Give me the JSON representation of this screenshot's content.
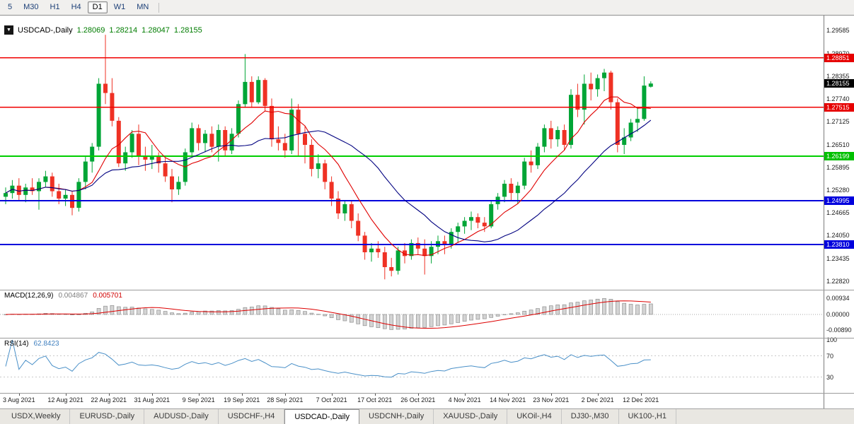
{
  "toolbar": {
    "periods": [
      {
        "label": "5",
        "active": false
      },
      {
        "label": "M30",
        "active": false
      },
      {
        "label": "H1",
        "active": false
      },
      {
        "label": "H4",
        "active": false
      },
      {
        "label": "D1",
        "active": true
      },
      {
        "label": "W1",
        "active": false
      },
      {
        "label": "MN",
        "active": false
      }
    ]
  },
  "chart_header": {
    "menu_icon": "▼",
    "symbol": "USDCAD-,Daily",
    "open": "1.28069",
    "high": "1.28214",
    "low": "1.28047",
    "close": "1.28155"
  },
  "macd_panel": {
    "title": "MACD(12,26,9)",
    "value_main": "0.004867",
    "value_signal": "0.005701",
    "axis": [
      {
        "text": "0.00934",
        "value": 0.00934
      },
      {
        "text": "0.00000",
        "value": 0
      },
      {
        "text": "-0.00890",
        "value": -0.0089
      }
    ]
  },
  "rsi_panel": {
    "title": "RSI(14)",
    "value": "62.8423",
    "axis": [
      {
        "text": "100",
        "value": 100
      },
      {
        "text": "70",
        "value": 70
      },
      {
        "text": "30",
        "value": 30
      }
    ]
  },
  "price_axis": {
    "labels": [
      "1.29585",
      "1.28970",
      "1.28355",
      "1.27740",
      "1.27125",
      "1.26510",
      "1.25895",
      "1.25280",
      "1.24665",
      "1.24050",
      "1.23435",
      "1.22820"
    ],
    "boxes": [
      {
        "text": "1.28851",
        "price": 1.28851,
        "bg": "#e60000"
      },
      {
        "text": "1.28155",
        "price": 1.28155,
        "bg": "#000000"
      },
      {
        "text": "1.27515",
        "price": 1.27515,
        "bg": "#e60000"
      },
      {
        "text": "1.26199",
        "price": 1.26199,
        "bg": "#00c000"
      },
      {
        "text": "1.24995",
        "price": 1.24995,
        "bg": "#0000dd"
      },
      {
        "text": "1.23810",
        "price": 1.2381,
        "bg": "#0000dd"
      }
    ]
  },
  "date_axis": [
    {
      "text": "3 Aug 2021",
      "idx": 2
    },
    {
      "text": "12 Aug 2021",
      "idx": 9
    },
    {
      "text": "22 Aug 2021",
      "idx": 15.5
    },
    {
      "text": "31 Aug 2021",
      "idx": 22
    },
    {
      "text": "9 Sep 2021",
      "idx": 29
    },
    {
      "text": "19 Sep 2021",
      "idx": 35.5
    },
    {
      "text": "28 Sep 2021",
      "idx": 42
    },
    {
      "text": "7 Oct 2021",
      "idx": 49
    },
    {
      "text": "17 Oct 2021",
      "idx": 55.5
    },
    {
      "text": "26 Oct 2021",
      "idx": 62
    },
    {
      "text": "4 Nov 2021",
      "idx": 69
    },
    {
      "text": "14 Nov 2021",
      "idx": 75.5
    },
    {
      "text": "23 Nov 2021",
      "idx": 82
    },
    {
      "text": "2 Dec 2021",
      "idx": 89
    },
    {
      "text": "12 Dec 2021",
      "idx": 95.5
    }
  ],
  "tabs": [
    {
      "label": "USDX,Weekly",
      "active": false
    },
    {
      "label": "EURUSD-,Daily",
      "active": false
    },
    {
      "label": "AUDUSD-,Daily",
      "active": false
    },
    {
      "label": "USDCHF-,H4",
      "active": false
    },
    {
      "label": "USDCAD-,Daily",
      "active": true
    },
    {
      "label": "USDCNH-,Daily",
      "active": false
    },
    {
      "label": "XAUUSD-,Daily",
      "active": false
    },
    {
      "label": "UKOil-,H4",
      "active": false
    },
    {
      "label": "DJ30-,M30",
      "active": false
    },
    {
      "label": "UK100-,H1",
      "active": false
    }
  ],
  "colors": {
    "bull": "#00a536",
    "bear": "#ef3124",
    "macd_fill": "#d4d4d4",
    "macd_stroke": "#8f8f8f",
    "macd_signal": "#dd0000",
    "rsi_line": "#4a90c8"
  },
  "chart_data": {
    "type": "candlestick",
    "title": "USDCAD-,Daily",
    "symbol": "USDCAD",
    "timeframe": "Daily",
    "last_bar": {
      "open": 1.28069,
      "high": 1.28214,
      "low": 1.28047,
      "close": 1.28155
    },
    "ylim": [
      1.2259,
      1.2999
    ],
    "x0": 8,
    "step": 9.4,
    "levels": [
      {
        "price": 1.28851,
        "color": "#f00000",
        "width": 1.4
      },
      {
        "price": 1.27515,
        "color": "#f00000",
        "width": 1.4
      },
      {
        "price": 1.26199,
        "color": "#00ce00",
        "width": 2
      },
      {
        "price": 1.24995,
        "color": "#0000dc",
        "width": 2
      },
      {
        "price": 1.2381,
        "color": "#0000dc",
        "width": 2
      }
    ],
    "current_price": 1.28155,
    "ma": [
      {
        "period": 8,
        "color": "#e00000",
        "width": 1.1
      },
      {
        "period": 21,
        "color": "#000080",
        "width": 1.1
      }
    ],
    "macd": {
      "fast": 12,
      "slow": 26,
      "signal_period": 9,
      "ylim": [
        -0.0134,
        0.0142
      ]
    },
    "rsi": {
      "period": 14,
      "ylim": [
        0,
        104
      ],
      "levels": [
        70,
        30
      ]
    },
    "candles": [
      [
        1.251,
        1.2535,
        1.249,
        1.252
      ],
      [
        1.252,
        1.2555,
        1.2505,
        1.254
      ],
      [
        1.254,
        1.256,
        1.25,
        1.2515
      ],
      [
        1.2515,
        1.2545,
        1.2495,
        1.2535
      ],
      [
        1.2535,
        1.256,
        1.2515,
        1.2525
      ],
      [
        1.2525,
        1.256,
        1.2475,
        1.255
      ],
      [
        1.255,
        1.258,
        1.2535,
        1.2565
      ],
      [
        1.2565,
        1.2575,
        1.251,
        1.2525
      ],
      [
        1.2525,
        1.2545,
        1.249,
        1.2505
      ],
      [
        1.2505,
        1.253,
        1.2485,
        1.2515
      ],
      [
        1.2515,
        1.2525,
        1.246,
        1.248
      ],
      [
        1.248,
        1.256,
        1.247,
        1.255
      ],
      [
        1.255,
        1.262,
        1.253,
        1.2605
      ],
      [
        1.2605,
        1.2655,
        1.2575,
        1.2645
      ],
      [
        1.2645,
        1.283,
        1.2635,
        1.2815
      ],
      [
        1.2815,
        1.2947,
        1.276,
        1.279
      ],
      [
        1.279,
        1.283,
        1.27,
        1.2715
      ],
      [
        1.2715,
        1.2725,
        1.259,
        1.26
      ],
      [
        1.26,
        1.2645,
        1.258,
        1.263
      ],
      [
        1.263,
        1.269,
        1.2615,
        1.268
      ],
      [
        1.268,
        1.2705,
        1.2595,
        1.262
      ],
      [
        1.262,
        1.2645,
        1.258,
        1.261
      ],
      [
        1.261,
        1.265,
        1.2585,
        1.262
      ],
      [
        1.262,
        1.263,
        1.2575,
        1.26
      ],
      [
        1.26,
        1.2615,
        1.255,
        1.2565
      ],
      [
        1.2565,
        1.2585,
        1.2495,
        1.253
      ],
      [
        1.253,
        1.2565,
        1.2515,
        1.255
      ],
      [
        1.255,
        1.264,
        1.254,
        1.263
      ],
      [
        1.263,
        1.271,
        1.262,
        1.2695
      ],
      [
        1.2695,
        1.2705,
        1.2635,
        1.2655
      ],
      [
        1.2655,
        1.269,
        1.263,
        1.268
      ],
      [
        1.268,
        1.27,
        1.263,
        1.2645
      ],
      [
        1.2645,
        1.2705,
        1.2605,
        1.269
      ],
      [
        1.269,
        1.27,
        1.262,
        1.2635
      ],
      [
        1.2635,
        1.2695,
        1.2625,
        1.268
      ],
      [
        1.268,
        1.277,
        1.267,
        1.276
      ],
      [
        1.276,
        1.2895,
        1.275,
        1.282
      ],
      [
        1.282,
        1.2835,
        1.275,
        1.2765
      ],
      [
        1.2765,
        1.2835,
        1.276,
        1.2825
      ],
      [
        1.2825,
        1.283,
        1.274,
        1.2755
      ],
      [
        1.2755,
        1.2775,
        1.2645,
        1.2665
      ],
      [
        1.2665,
        1.27,
        1.2635,
        1.2655
      ],
      [
        1.2655,
        1.268,
        1.2615,
        1.2635
      ],
      [
        1.2635,
        1.2775,
        1.2625,
        1.2745
      ],
      [
        1.2745,
        1.276,
        1.262,
        1.268
      ],
      [
        1.268,
        1.27,
        1.26,
        1.265
      ],
      [
        1.265,
        1.2665,
        1.2565,
        1.2585
      ],
      [
        1.2585,
        1.2625,
        1.256,
        1.26
      ],
      [
        1.26,
        1.261,
        1.253,
        1.255
      ],
      [
        1.255,
        1.2565,
        1.2485,
        1.2505
      ],
      [
        1.2505,
        1.2525,
        1.245,
        1.2465
      ],
      [
        1.2465,
        1.25,
        1.2445,
        1.249
      ],
      [
        1.249,
        1.25,
        1.2425,
        1.2445
      ],
      [
        1.2445,
        1.2465,
        1.239,
        1.2405
      ],
      [
        1.2405,
        1.2415,
        1.234,
        1.236
      ],
      [
        1.236,
        1.2385,
        1.2335,
        1.237
      ],
      [
        1.237,
        1.239,
        1.2345,
        1.236
      ],
      [
        1.236,
        1.2375,
        1.2287,
        1.232
      ],
      [
        1.232,
        1.2345,
        1.2295,
        1.231
      ],
      [
        1.231,
        1.2375,
        1.23,
        1.2365
      ],
      [
        1.2365,
        1.2385,
        1.233,
        1.235
      ],
      [
        1.235,
        1.2395,
        1.234,
        1.2385
      ],
      [
        1.2385,
        1.24,
        1.2355,
        1.237
      ],
      [
        1.237,
        1.2395,
        1.23,
        1.235
      ],
      [
        1.235,
        1.239,
        1.233,
        1.2375
      ],
      [
        1.2375,
        1.2405,
        1.2355,
        1.239
      ],
      [
        1.239,
        1.2405,
        1.2355,
        1.238
      ],
      [
        1.238,
        1.2425,
        1.237,
        1.2415
      ],
      [
        1.2415,
        1.244,
        1.2385,
        1.243
      ],
      [
        1.243,
        1.2455,
        1.241,
        1.2445
      ],
      [
        1.2445,
        1.247,
        1.242,
        1.2455
      ],
      [
        1.2455,
        1.2465,
        1.2425,
        1.244
      ],
      [
        1.244,
        1.2455,
        1.2415,
        1.243
      ],
      [
        1.243,
        1.25,
        1.2425,
        1.249
      ],
      [
        1.249,
        1.252,
        1.2475,
        1.251
      ],
      [
        1.251,
        1.2555,
        1.2495,
        1.2545
      ],
      [
        1.2545,
        1.256,
        1.25,
        1.252
      ],
      [
        1.252,
        1.255,
        1.249,
        1.254
      ],
      [
        1.254,
        1.2615,
        1.253,
        1.2605
      ],
      [
        1.2605,
        1.2635,
        1.2575,
        1.2595
      ],
      [
        1.2595,
        1.2655,
        1.2585,
        1.2645
      ],
      [
        1.2645,
        1.2705,
        1.263,
        1.2695
      ],
      [
        1.2695,
        1.2715,
        1.264,
        1.2665
      ],
      [
        1.2665,
        1.27,
        1.2645,
        1.269
      ],
      [
        1.269,
        1.2705,
        1.2635,
        1.265
      ],
      [
        1.265,
        1.28,
        1.264,
        1.2785
      ],
      [
        1.2785,
        1.2815,
        1.2725,
        1.2745
      ],
      [
        1.2745,
        1.284,
        1.2705,
        1.2815
      ],
      [
        1.2815,
        1.2845,
        1.277,
        1.28
      ],
      [
        1.28,
        1.284,
        1.278,
        1.283
      ],
      [
        1.283,
        1.2855,
        1.2795,
        1.2845
      ],
      [
        1.2845,
        1.285,
        1.2745,
        1.2765
      ],
      [
        1.2765,
        1.2775,
        1.263,
        1.265
      ],
      [
        1.265,
        1.2695,
        1.2625,
        1.267
      ],
      [
        1.267,
        1.272,
        1.266,
        1.271
      ],
      [
        1.271,
        1.275,
        1.2685,
        1.272
      ],
      [
        1.272,
        1.2835,
        1.2715,
        1.281
      ],
      [
        1.28069,
        1.28214,
        1.28047,
        1.28155
      ]
    ]
  }
}
